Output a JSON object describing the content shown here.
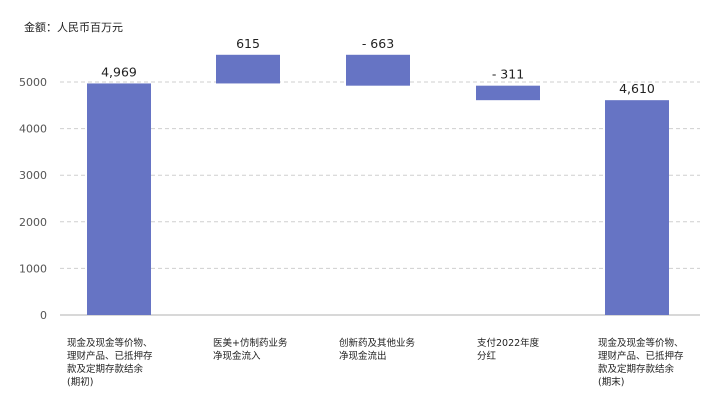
{
  "chart_data": {
    "type": "waterfall",
    "unit_label": "金额：人民币百万元",
    "categories": [
      "现金及现金等价物、\n理财产品、已抵押存\n款及定期存款结余\n(期初)",
      "医美+仿制药业务\n净现金流入",
      "创新药及其他业务\n净现金流出",
      "支付2022年度\n分红",
      "现金及现金等价物、\n理财产品、已抵押存\n款及定期存款结余\n(期末)"
    ],
    "bars": [
      {
        "kind": "total",
        "start": 0,
        "end": 4969,
        "label": "4,969"
      },
      {
        "kind": "delta",
        "start": 4969,
        "end": 5584,
        "label": "615"
      },
      {
        "kind": "delta",
        "start": 5584,
        "end": 4921,
        "label": "- 663"
      },
      {
        "kind": "delta",
        "start": 4921,
        "end": 4610,
        "label": "- 311"
      },
      {
        "kind": "total",
        "start": 0,
        "end": 4610,
        "label": "4,610"
      }
    ],
    "y_ticks": [
      "0",
      "1000",
      "2000",
      "3000",
      "4000",
      "5000"
    ],
    "ylim": [
      0,
      5600
    ],
    "grid": true,
    "legend": "none",
    "colors": {
      "bar": "#6674c4",
      "grid": "#cfcfcf",
      "axis": "#b0b0b0",
      "text": "#222222",
      "tick": "#555555"
    }
  }
}
